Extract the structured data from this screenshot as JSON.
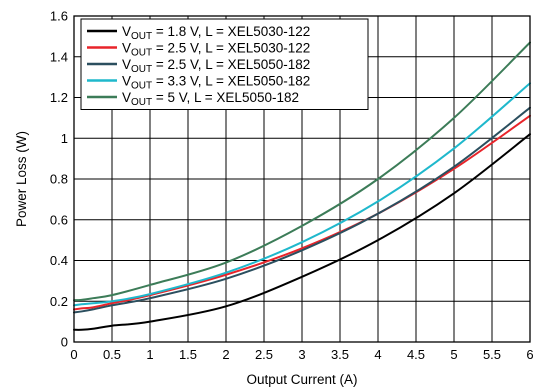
{
  "chart_data": {
    "type": "line",
    "title": "",
    "xlabel": "Output Current (A)",
    "ylabel": "Power Loss (W)",
    "xlim": [
      0,
      6
    ],
    "ylim": [
      0,
      1.6
    ],
    "xticks": [
      "0",
      "0.5",
      "1",
      "1.5",
      "2",
      "2.5",
      "3",
      "3.5",
      "4",
      "4.5",
      "5",
      "5.5",
      "6"
    ],
    "yticks": [
      "0",
      "0.2",
      "0.4",
      "0.6",
      "0.8",
      "1",
      "1.2",
      "1.4",
      "1.6"
    ],
    "grid": true,
    "legend_position": "top-left",
    "x": [
      0,
      0.1,
      0.25,
      0.5,
      1,
      2,
      3,
      4,
      5,
      6
    ],
    "series": [
      {
        "name_pre": "V",
        "name_sub": "OUT",
        "name_post": " = 1.8 V, L = XEL5030-122",
        "color": "#000000",
        "values": [
          0.06,
          0.06,
          0.065,
          0.08,
          0.1,
          0.175,
          0.32,
          0.5,
          0.73,
          1.02
        ]
      },
      {
        "name_pre": "V",
        "name_sub": "OUT",
        "name_post": " = 2.5 V, L = XEL5030-122",
        "color": "#e8242a",
        "values": [
          0.16,
          0.165,
          0.17,
          0.19,
          0.23,
          0.33,
          0.46,
          0.63,
          0.85,
          1.11
        ]
      },
      {
        "name_pre": "V",
        "name_sub": "OUT",
        "name_post": " = 2.5 V, L = XEL5050-182",
        "color": "#2b4f5f",
        "values": [
          0.145,
          0.15,
          0.16,
          0.18,
          0.215,
          0.31,
          0.45,
          0.63,
          0.86,
          1.15
        ]
      },
      {
        "name_pre": "V",
        "name_sub": "OUT",
        "name_post": " = 3.3 V, L = XEL5050-182",
        "color": "#1fb8cc",
        "values": [
          0.18,
          0.185,
          0.19,
          0.2,
          0.235,
          0.34,
          0.49,
          0.69,
          0.95,
          1.27
        ]
      },
      {
        "name_pre": "V",
        "name_sub": "OUT",
        "name_post": " = 5 V, L = XEL5050-182",
        "color": "#3c7c58",
        "values": [
          0.205,
          0.207,
          0.215,
          0.23,
          0.28,
          0.39,
          0.57,
          0.8,
          1.1,
          1.47
        ]
      }
    ]
  }
}
